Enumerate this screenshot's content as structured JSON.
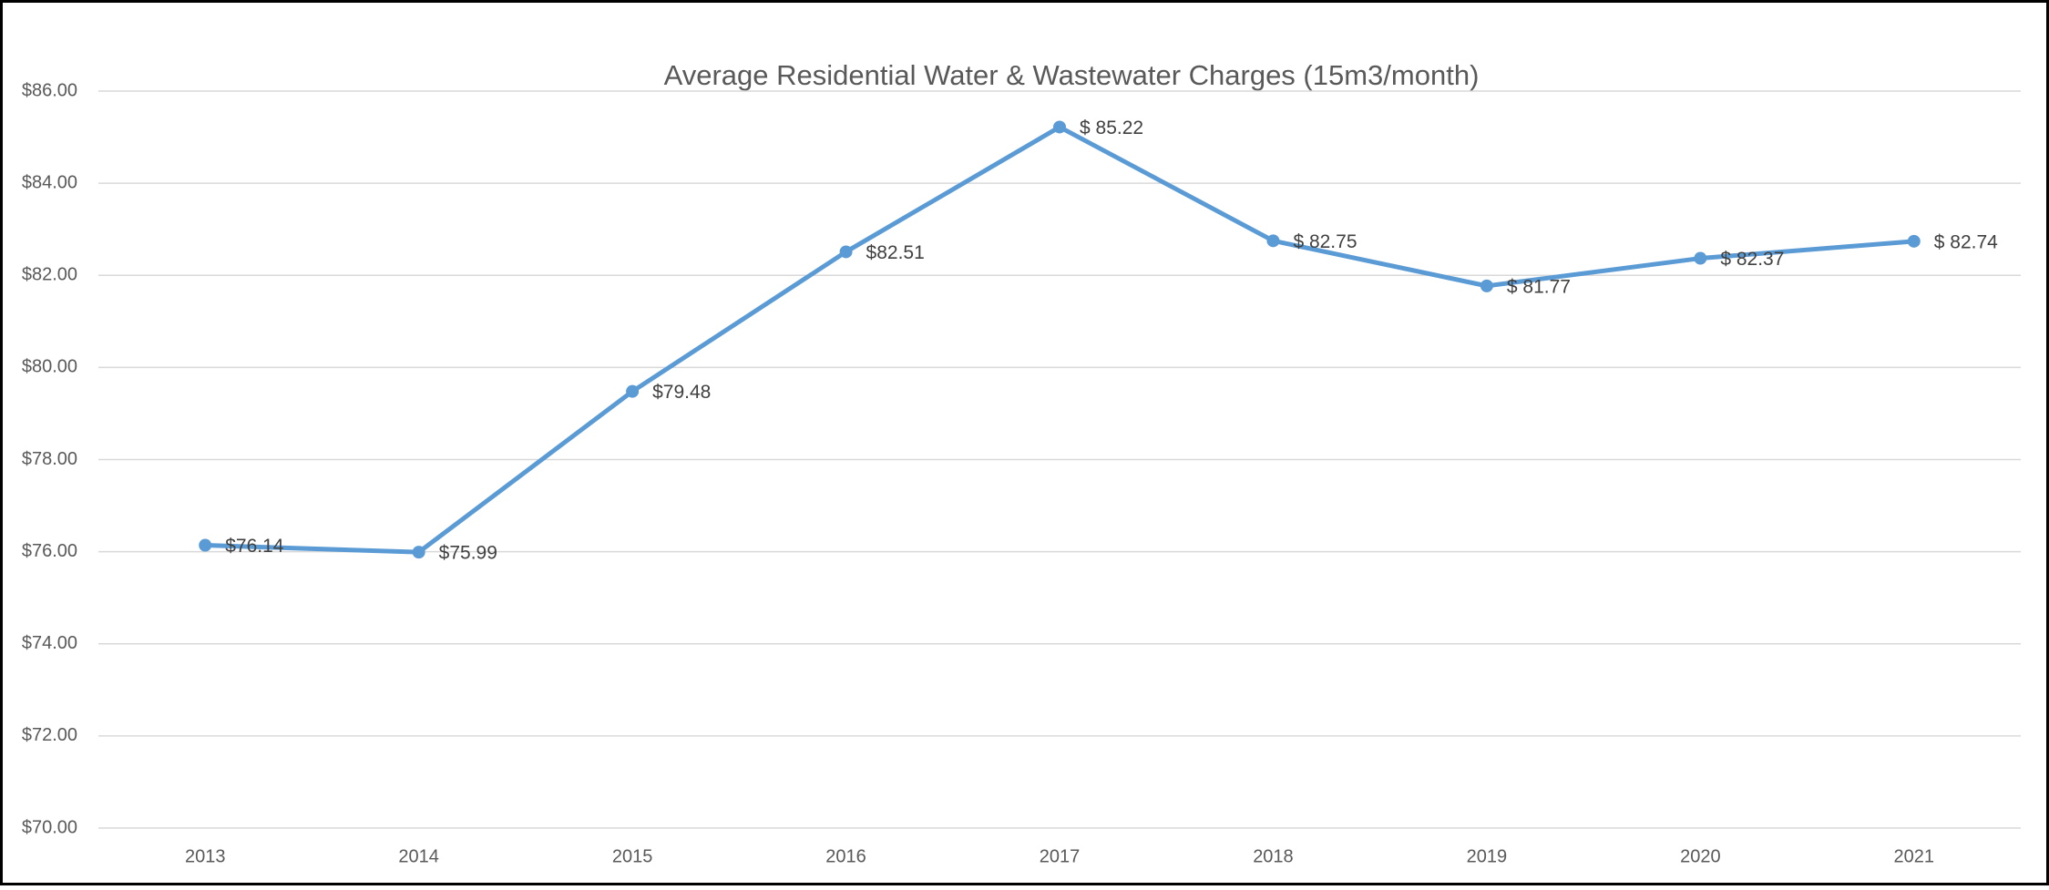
{
  "chart_data": {
    "type": "line",
    "title": "Average Residential Water & Wastewater Charges (15m3/month)",
    "categories": [
      "2013",
      "2014",
      "2015",
      "2016",
      "2017",
      "2018",
      "2019",
      "2020",
      "2021"
    ],
    "series": [
      {
        "color": "#5b9bd5",
        "values": [
          76.14,
          75.99,
          79.48,
          82.51,
          85.22,
          82.75,
          81.77,
          82.37,
          82.74
        ],
        "value_labels": [
          "$76.14",
          "$75.99",
          "$79.48",
          "$82.51",
          "$ 85.22",
          "$ 82.75",
          "$ 81.77",
          "$ 82.37",
          "$ 82.74"
        ]
      }
    ],
    "ylim": [
      70,
      86
    ],
    "yticks": [
      {
        "value": 70,
        "label": "$70.00"
      },
      {
        "value": 72,
        "label": "$72.00"
      },
      {
        "value": 74,
        "label": "$74.00"
      },
      {
        "value": 76,
        "label": "$76.00"
      },
      {
        "value": 78,
        "label": "$78.00"
      },
      {
        "value": 80,
        "label": "$80.00"
      },
      {
        "value": 82,
        "label": "$82.00"
      },
      {
        "value": 84,
        "label": "$84.00"
      },
      {
        "value": 86,
        "label": "$86.00"
      }
    ],
    "grid": true
  }
}
